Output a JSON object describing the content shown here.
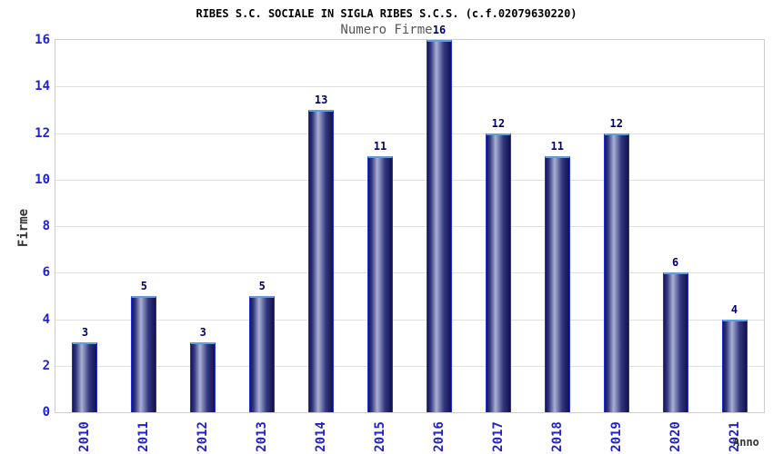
{
  "header": {
    "title": "RIBES S.C. SOCIALE IN SIGLA RIBES S.C.S. (c.f.02079630220)",
    "subtitle": "Numero Firme"
  },
  "chart_data": {
    "type": "bar",
    "title": "RIBES S.C. SOCIALE IN SIGLA RIBES S.C.S. (c.f.02079630220)",
    "subtitle": "Numero Firme",
    "xlabel": "Anno",
    "ylabel": "Firme",
    "categories": [
      "2010",
      "2011",
      "2012",
      "2013",
      "2014",
      "2015",
      "2016",
      "2017",
      "2018",
      "2019",
      "2020",
      "2021"
    ],
    "values": [
      3,
      5,
      3,
      5,
      13,
      11,
      16,
      12,
      11,
      12,
      6,
      4
    ],
    "ylim": [
      0,
      16
    ],
    "ytick_step": 2,
    "yticks": [
      0,
      2,
      4,
      6,
      8,
      10,
      12,
      14,
      16
    ],
    "grid": true,
    "legend": "none",
    "value_labels_shown": true
  },
  "colors": {
    "band_gray": "#f2f2f2",
    "band_white": "#ffffff",
    "gridline": "#e0e0e0",
    "plot_border": "#cccccc",
    "tick_label": "#2222cc",
    "value_label": "#000066",
    "title_text": "#000000",
    "subtitle_text": "#555555",
    "axis_title_text": "#333333",
    "bar_border": "#2433cc",
    "bar_top_cap": "#5e9fe0",
    "bar_dark": "#14155f",
    "bar_mid": "#33387f",
    "bar_light": "#a9b1d4",
    "bar_dark_right": "#101150"
  }
}
